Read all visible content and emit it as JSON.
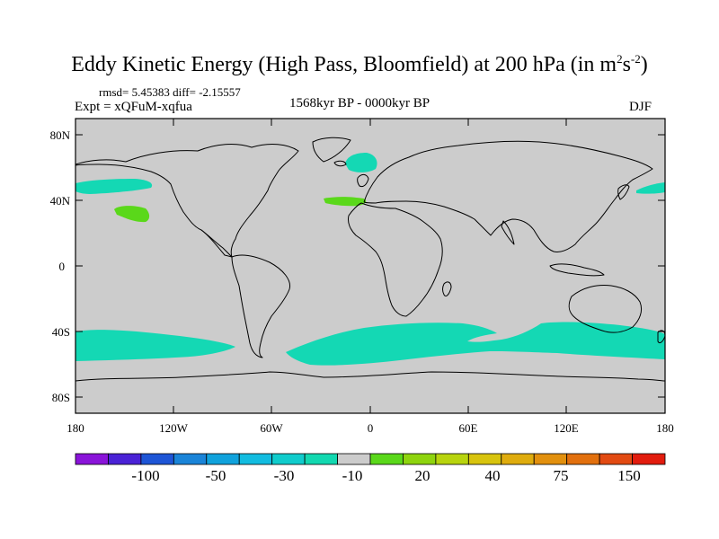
{
  "title": {
    "main": "Eddy Kinetic Energy (High Pass, Bloomfield) at 200 hPa (in m",
    "sup1": "2",
    "mid": "s",
    "sup2": "-2",
    "end": ")"
  },
  "stats": "rmsd= 5.45383  diff= -2.15557",
  "experiment": "Expt = xQFuM-xqfua",
  "period": "1568kyr BP - 0000kyr BP",
  "season": "DJF",
  "lat_labels": [
    "80N",
    "40N",
    "0",
    "40S",
    "80S"
  ],
  "lon_labels": [
    "180",
    "120W",
    "60W",
    "0",
    "60E",
    "120E",
    "180"
  ],
  "colorbar": {
    "colors": [
      "#8a14d9",
      "#4a22d6",
      "#1e55d6",
      "#1a84d8",
      "#10a2dc",
      "#12bce0",
      "#10cccc",
      "#12d8b0",
      "#cccccc",
      "#5ad81a",
      "#8ed40e",
      "#b8d40e",
      "#d8c40e",
      "#dfac0e",
      "#e2900e",
      "#e2700e",
      "#e24a12",
      "#e21c0e"
    ],
    "labels": [
      "-100",
      "-50",
      "-30",
      "-10",
      "20",
      "40",
      "75",
      "150"
    ]
  },
  "map_colors": {
    "ocean_land": "#cccccc",
    "negative": "#14d8b4",
    "positive": "#5ad81a"
  }
}
